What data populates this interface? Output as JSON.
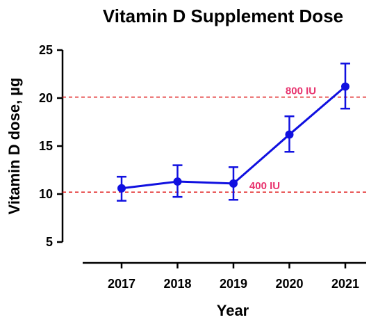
{
  "chart_data": {
    "type": "line",
    "title": "Vitamin D Supplement Dose",
    "xlabel": "Year",
    "ylabel": "Vitamin D dose, µg",
    "categories": [
      "2017",
      "2018",
      "2019",
      "2020",
      "2021"
    ],
    "y_ticks": [
      "5",
      "10",
      "15",
      "20",
      "25"
    ],
    "y_tick_values": [
      5,
      10,
      15,
      20,
      25
    ],
    "ylim": [
      5,
      25
    ],
    "grid": false,
    "series": [
      {
        "values": [
          10.6,
          11.3,
          11.1,
          16.2,
          21.2
        ],
        "err_low": [
          9.3,
          9.7,
          9.4,
          14.4,
          18.9
        ],
        "err_high": [
          11.8,
          13.0,
          12.8,
          18.1,
          23.6
        ],
        "color": "#1010e0"
      }
    ],
    "reference_lines": [
      {
        "label": "800 IU",
        "value": 20.1,
        "color": "#e01b1b"
      },
      {
        "label": "400 IU",
        "value": 10.2,
        "color": "#e01b1b"
      }
    ]
  }
}
